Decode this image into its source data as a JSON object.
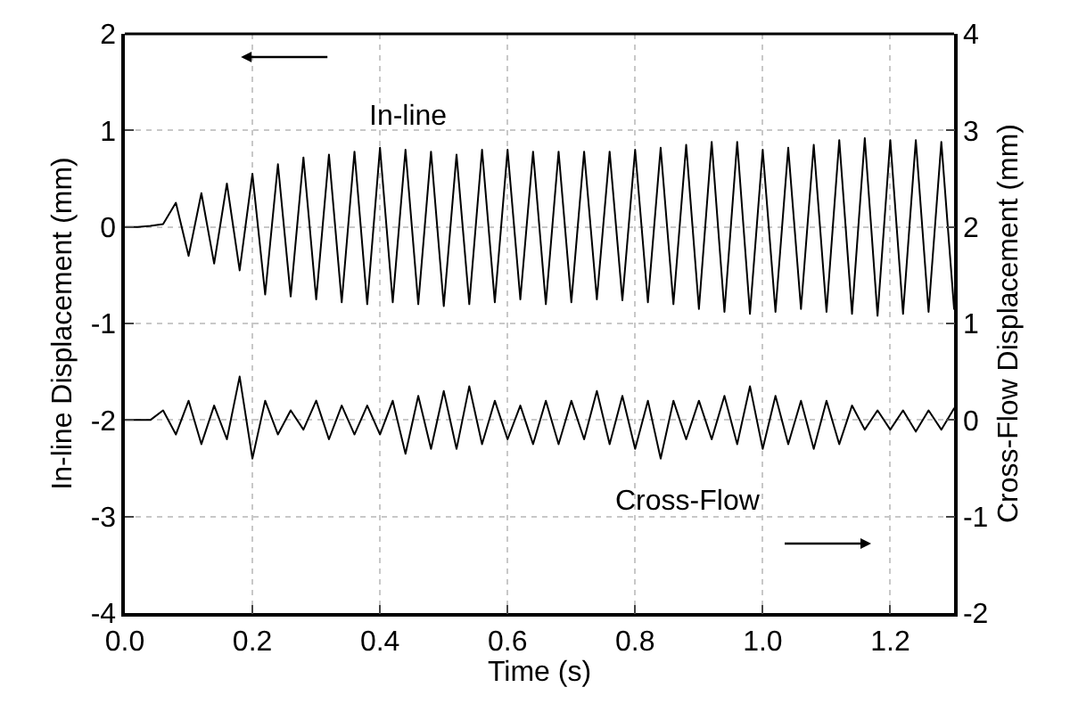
{
  "chart_data": {
    "type": "line",
    "xlabel": "Time (s)",
    "ylabel": "In-line Displacement (mm)",
    "y2label": "Cross-Flow Displacement (mm)",
    "x": [
      0,
      0.02,
      0.04,
      0.06,
      0.08,
      0.1,
      0.12,
      0.14,
      0.16,
      0.18,
      0.2,
      0.22,
      0.24,
      0.26,
      0.28,
      0.3,
      0.32,
      0.34,
      0.36,
      0.38,
      0.4,
      0.42,
      0.44,
      0.46,
      0.48,
      0.5,
      0.52,
      0.54,
      0.56,
      0.58,
      0.6,
      0.62,
      0.64,
      0.66,
      0.68,
      0.7,
      0.72,
      0.74,
      0.76,
      0.78,
      0.8,
      0.82,
      0.84,
      0.86,
      0.88,
      0.9,
      0.92,
      0.94,
      0.96,
      0.98,
      1.0,
      1.02,
      1.04,
      1.06,
      1.08,
      1.1,
      1.12,
      1.14,
      1.16,
      1.18,
      1.2,
      1.22,
      1.24,
      1.26,
      1.28,
      1.3
    ],
    "series": [
      {
        "color": "#000000",
        "values": [
          0,
          0,
          0.01,
          0.03,
          0.25,
          -0.3,
          0.35,
          -0.38,
          0.45,
          -0.45,
          0.55,
          -0.7,
          0.65,
          -0.72,
          0.72,
          -0.75,
          0.75,
          -0.78,
          0.78,
          -0.8,
          0.82,
          -0.78,
          0.8,
          -0.8,
          0.78,
          -0.82,
          0.75,
          -0.8,
          0.8,
          -0.78,
          0.8,
          -0.75,
          0.78,
          -0.8,
          0.78,
          -0.78,
          0.78,
          -0.75,
          0.78,
          -0.76,
          0.8,
          -0.78,
          0.82,
          -0.8,
          0.85,
          -0.85,
          0.88,
          -0.88,
          0.88,
          -0.9,
          0.8,
          -0.88,
          0.82,
          -0.85,
          0.85,
          -0.88,
          0.9,
          -0.9,
          0.92,
          -0.92,
          0.9,
          -0.9,
          0.9,
          -0.88,
          0.88,
          -0.85
        ]
      },
      {
        "color": "#000000",
        "axis": "y2",
        "values": [
          0,
          0,
          0,
          0.1,
          -0.15,
          0.2,
          -0.25,
          0.15,
          -0.2,
          0.45,
          -0.4,
          0.2,
          -0.15,
          0.1,
          -0.1,
          0.2,
          -0.2,
          0.15,
          -0.15,
          0.15,
          -0.15,
          0.2,
          -0.35,
          0.25,
          -0.3,
          0.3,
          -0.3,
          0.35,
          -0.25,
          0.2,
          -0.2,
          0.15,
          -0.25,
          0.2,
          -0.25,
          0.2,
          -0.2,
          0.3,
          -0.25,
          0.25,
          -0.3,
          0.2,
          -0.4,
          0.2,
          -0.2,
          0.2,
          -0.2,
          0.25,
          -0.25,
          0.35,
          -0.3,
          0.25,
          -0.25,
          0.2,
          -0.3,
          0.2,
          -0.25,
          0.15,
          -0.1,
          0.1,
          -0.1,
          0.1,
          -0.12,
          0.1,
          -0.1,
          0.12
        ]
      }
    ],
    "xlim": [
      0,
      1.3
    ],
    "xticks": [
      {
        "value": 0,
        "label": "0.0"
      },
      0.2,
      0.4,
      0.6,
      0.8,
      {
        "value": 1,
        "label": "1.0"
      },
      1.2
    ],
    "ylim": [
      -4,
      2
    ],
    "yticks": [
      -4,
      -3,
      -2,
      -1,
      0,
      1,
      2
    ],
    "y2lim": [
      -2,
      4
    ],
    "y2ticks": [
      -2,
      -1,
      0,
      1,
      2,
      3,
      4
    ],
    "annotations": [
      "In-line",
      "Cross-Flow"
    ],
    "grid": true,
    "marker": "none",
    "line_style": "solid"
  }
}
